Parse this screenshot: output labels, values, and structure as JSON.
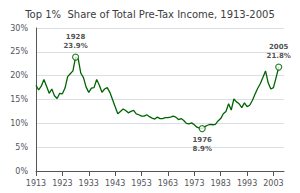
{
  "chart_data": {
    "type": "line",
    "title": "Top 1%  Share of Total Pre-Tax Income, 1913-2005",
    "color": "#006400",
    "x": [
      1913,
      1914,
      1915,
      1916,
      1917,
      1918,
      1919,
      1920,
      1921,
      1922,
      1923,
      1924,
      1925,
      1926,
      1927,
      1928,
      1929,
      1930,
      1931,
      1932,
      1933,
      1934,
      1935,
      1936,
      1937,
      1938,
      1939,
      1940,
      1941,
      1942,
      1943,
      1944,
      1945,
      1946,
      1947,
      1948,
      1949,
      1950,
      1951,
      1952,
      1953,
      1954,
      1955,
      1956,
      1957,
      1958,
      1959,
      1960,
      1961,
      1962,
      1963,
      1964,
      1965,
      1966,
      1967,
      1968,
      1969,
      1970,
      1971,
      1972,
      1973,
      1974,
      1975,
      1976,
      1977,
      1978,
      1979,
      1980,
      1981,
      1982,
      1983,
      1984,
      1985,
      1986,
      1987,
      1988,
      1989,
      1990,
      1991,
      1992,
      1993,
      1994,
      1995,
      1996,
      1997,
      1998,
      1999,
      2000,
      2001,
      2002,
      2003,
      2004,
      2005
    ],
    "values": [
      0.18,
      0.17,
      0.178,
      0.192,
      0.178,
      0.163,
      0.172,
      0.158,
      0.152,
      0.163,
      0.162,
      0.174,
      0.198,
      0.204,
      0.21,
      0.239,
      0.235,
      0.205,
      0.196,
      0.176,
      0.165,
      0.174,
      0.175,
      0.192,
      0.18,
      0.165,
      0.172,
      0.175,
      0.165,
      0.15,
      0.135,
      0.12,
      0.125,
      0.13,
      0.127,
      0.122,
      0.125,
      0.127,
      0.12,
      0.118,
      0.115,
      0.115,
      0.118,
      0.114,
      0.111,
      0.109,
      0.113,
      0.11,
      0.11,
      0.112,
      0.112,
      0.113,
      0.115,
      0.113,
      0.108,
      0.11,
      0.106,
      0.1,
      0.099,
      0.101,
      0.097,
      0.092,
      0.09,
      0.089,
      0.093,
      0.096,
      0.098,
      0.097,
      0.098,
      0.105,
      0.11,
      0.12,
      0.125,
      0.141,
      0.128,
      0.151,
      0.145,
      0.141,
      0.133,
      0.143,
      0.135,
      0.138,
      0.148,
      0.161,
      0.173,
      0.183,
      0.196,
      0.21,
      0.185,
      0.172,
      0.175,
      0.196,
      0.218
    ],
    "xlim": [
      1913,
      2007
    ],
    "xticks": [
      1913,
      1923,
      1933,
      1943,
      1953,
      1963,
      1973,
      1983,
      1993,
      2003
    ],
    "ylim": [
      0.0,
      0.3
    ],
    "yticks": [
      {
        "value": 0.0,
        "label": "0%"
      },
      {
        "value": 0.05,
        "label": "5%"
      },
      {
        "value": 0.1,
        "label": "10%"
      },
      {
        "value": 0.15,
        "label": "15%"
      },
      {
        "value": 0.2,
        "label": "20%"
      },
      {
        "value": 0.25,
        "label": "25%"
      },
      {
        "value": 0.3,
        "label": "30%"
      }
    ],
    "grid": true,
    "annotations": [
      {
        "text": "1928\n23.9%",
        "x": 1928,
        "y": 0.239
      },
      {
        "text": "1976\n8.9%",
        "x": 1976,
        "y": 0.089
      },
      {
        "text": "2005\n21.8%",
        "x": 2005,
        "y": 0.218
      }
    ]
  }
}
